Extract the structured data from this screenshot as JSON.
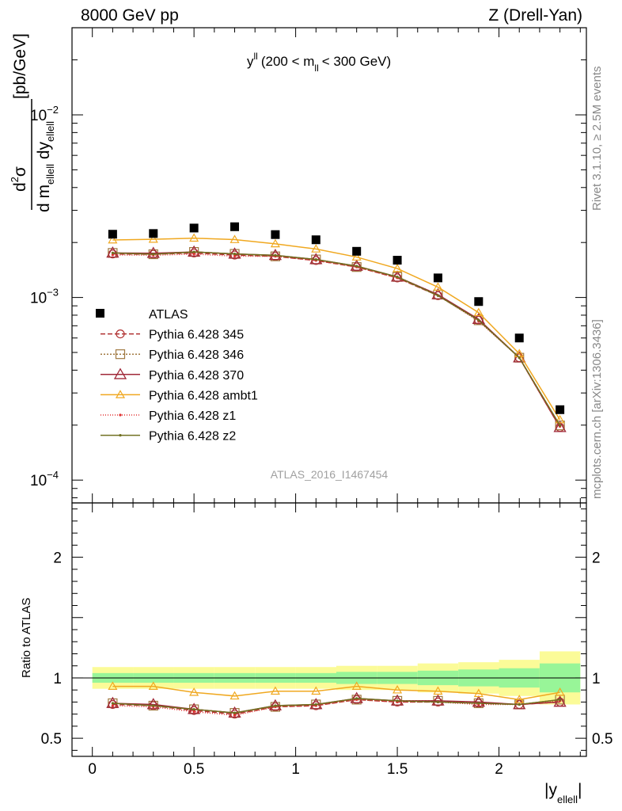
{
  "header": {
    "left": "8000 GeV pp",
    "right": "Z (Drell-Yan)"
  },
  "side_labels": {
    "rivet": "Rivet 3.1.10, ≥ 2.5M events",
    "source": "mcplots.cern.ch [arXiv:1306.3436]"
  },
  "chart_data": {
    "type": "line",
    "plot_title": {
      "main": "y",
      "sup": "ll",
      "range_open": "(200 < m",
      "range_sub": "ll",
      "range_close": "< 300 GeV)"
    },
    "analysis_id": "ATLAS_2016_I1467454",
    "xlabel": {
      "main": "|y",
      "sub": "ellell",
      "close": "|"
    },
    "ylabel": {
      "num_d": "d",
      "num_sup": "2",
      "num_sigma": "σ",
      "den_pre": "d m",
      "den_sub1": "ellell",
      "den_mid": " dy",
      "den_sub2": "ellell",
      "units": "[pb/GeV]"
    },
    "ratio_ylabel": "Ratio to ATLAS",
    "xlim": [
      -0.1,
      2.43
    ],
    "ylim": [
      7.5e-05,
      0.03
    ],
    "yscale": "log",
    "ratio_ylim": [
      0.35,
      2.45
    ],
    "x_ticks": [
      "0",
      "0.5",
      "1",
      "1.5",
      "2"
    ],
    "y_ticks": [
      {
        "base": "10",
        "exp": "−2"
      },
      {
        "base": "10",
        "exp": "−3"
      },
      {
        "base": "10",
        "exp": "−4"
      }
    ],
    "ratio_ticks": [
      "0.5",
      "1",
      "2"
    ],
    "x": [
      0.1,
      0.3,
      0.5,
      0.7,
      0.9,
      1.1,
      1.3,
      1.5,
      1.7,
      1.9,
      2.1,
      2.3
    ],
    "bin_edges": [
      0.0,
      0.2,
      0.4,
      0.6,
      0.8,
      1.0,
      1.2,
      1.4,
      1.6,
      1.8,
      2.0,
      2.2,
      2.4
    ],
    "data": {
      "name": "ATLAS",
      "values": [
        0.00222,
        0.00224,
        0.0024,
        0.00244,
        0.00221,
        0.00207,
        0.00179,
        0.0016,
        0.00128,
        0.00095,
        0.0006,
        0.000243
      ],
      "band_inner": [
        0.04,
        0.04,
        0.04,
        0.04,
        0.04,
        0.04,
        0.05,
        0.05,
        0.06,
        0.07,
        0.08,
        0.12
      ],
      "band_outer": [
        0.09,
        0.09,
        0.09,
        0.09,
        0.09,
        0.09,
        0.1,
        0.1,
        0.12,
        0.13,
        0.15,
        0.22
      ]
    },
    "series": [
      {
        "name": "Pythia 6.428 345",
        "color": "#b03030",
        "dash": "6,3",
        "marker": "circle",
        "ratio": [
          0.78,
          0.77,
          0.73,
          0.7,
          0.76,
          0.77,
          0.82,
          0.8,
          0.8,
          0.79,
          0.78,
          0.8
        ]
      },
      {
        "name": "Pythia 6.428 346",
        "color": "#a07840",
        "dash": "2,2",
        "marker": "square",
        "ratio": [
          0.79,
          0.77,
          0.74,
          0.71,
          0.76,
          0.78,
          0.82,
          0.81,
          0.81,
          0.79,
          0.78,
          0.82
        ]
      },
      {
        "name": "Pythia 6.428 370",
        "color": "#a02838",
        "dash": "",
        "marker": "triangle-big",
        "ratio": [
          0.79,
          0.78,
          0.74,
          0.71,
          0.77,
          0.78,
          0.83,
          0.81,
          0.81,
          0.8,
          0.78,
          0.8
        ]
      },
      {
        "name": "Pythia 6.428 ambt1",
        "color": "#f0a820",
        "dash": "",
        "marker": "triangle",
        "ratio": [
          0.93,
          0.93,
          0.88,
          0.85,
          0.89,
          0.89,
          0.93,
          0.9,
          0.89,
          0.87,
          0.82,
          0.88
        ]
      },
      {
        "name": "Pythia 6.428 z1",
        "color": "#e03030",
        "dash": "1,2",
        "marker": "dot",
        "ratio": [
          0.77,
          0.76,
          0.72,
          0.69,
          0.76,
          0.77,
          0.82,
          0.8,
          0.8,
          0.78,
          0.78,
          0.81
        ]
      },
      {
        "name": "Pythia 6.428 z2",
        "color": "#707020",
        "dash": "",
        "marker": "dot",
        "ratio": [
          0.79,
          0.77,
          0.74,
          0.71,
          0.77,
          0.78,
          0.83,
          0.81,
          0.8,
          0.79,
          0.78,
          0.82
        ]
      }
    ],
    "legend_position": "center-left",
    "grid": false,
    "colors": {
      "band_inner": "#98f598",
      "band_outer": "#fbfb98"
    }
  }
}
